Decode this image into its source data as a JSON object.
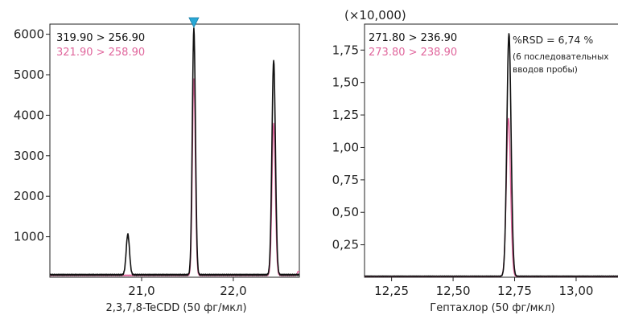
{
  "chart_data": [
    {
      "type": "line",
      "xlabel": "2,3,7,8-TeCDD (50 фг/мкл)",
      "xlim": [
        20.0,
        22.72
      ],
      "ylim": [
        0,
        6250
      ],
      "x_ticks": [
        21.0,
        22.0
      ],
      "x_tick_labels": [
        "21,0",
        "22,0"
      ],
      "y_ticks": [
        1000,
        2000,
        3000,
        4000,
        5000,
        6000
      ],
      "y_tick_labels": [
        "1000",
        "2000",
        "3000",
        "4000",
        "5000",
        "6000"
      ],
      "marker_x": 21.57,
      "marker_color": "#29a8d6",
      "grid": false,
      "legend": "top-left",
      "series": [
        {
          "name": "319.90 > 256.90",
          "color": "#111111",
          "baseline": 60,
          "peaks": [
            {
              "x": 20.85,
              "y": 1000,
              "sigma": 0.018
            },
            {
              "x": 21.57,
              "y": 6080,
              "sigma": 0.017
            },
            {
              "x": 22.44,
              "y": 5300,
              "sigma": 0.019
            }
          ]
        },
        {
          "name": "321.90 > 258.90",
          "color": "#e0669c",
          "baseline": 45,
          "peaks": [
            {
              "x": 21.57,
              "y": 4850,
              "sigma": 0.016
            },
            {
              "x": 22.44,
              "y": 3750,
              "sigma": 0.018
            },
            {
              "x": 22.71,
              "y": 100,
              "sigma": 0.012
            }
          ]
        }
      ]
    },
    {
      "type": "line",
      "multiplier_label": "(×10,000)",
      "xlabel": "Гептахлор (50 фг/мкл)",
      "xlim": [
        12.14,
        13.18
      ],
      "ylim": [
        0,
        1.95
      ],
      "x_ticks": [
        12.25,
        12.5,
        12.75,
        13.0
      ],
      "x_tick_labels": [
        "12,25",
        "12,50",
        "12,75",
        "13,00"
      ],
      "y_ticks": [
        0.25,
        0.5,
        0.75,
        1.0,
        1.25,
        1.5,
        1.75
      ],
      "y_tick_labels": [
        "0,25",
        "0,50",
        "0,75",
        "1,00",
        "1,25",
        "1,50",
        "1,75"
      ],
      "grid": false,
      "legend": "top-left",
      "annotation": [
        "%RSD = 6,74 %",
        "(6 последовательных",
        "вводов пробы)"
      ],
      "series": [
        {
          "name": "271.80 > 236.90",
          "color": "#111111",
          "baseline": 0.008,
          "peaks": [
            {
              "x": 12.727,
              "y": 1.87,
              "sigma": 0.0085
            }
          ]
        },
        {
          "name": "273.80 > 238.90",
          "color": "#e0669c",
          "baseline": 0.006,
          "peaks": [
            {
              "x": 12.725,
              "y": 1.22,
              "sigma": 0.0085
            }
          ]
        }
      ]
    }
  ]
}
